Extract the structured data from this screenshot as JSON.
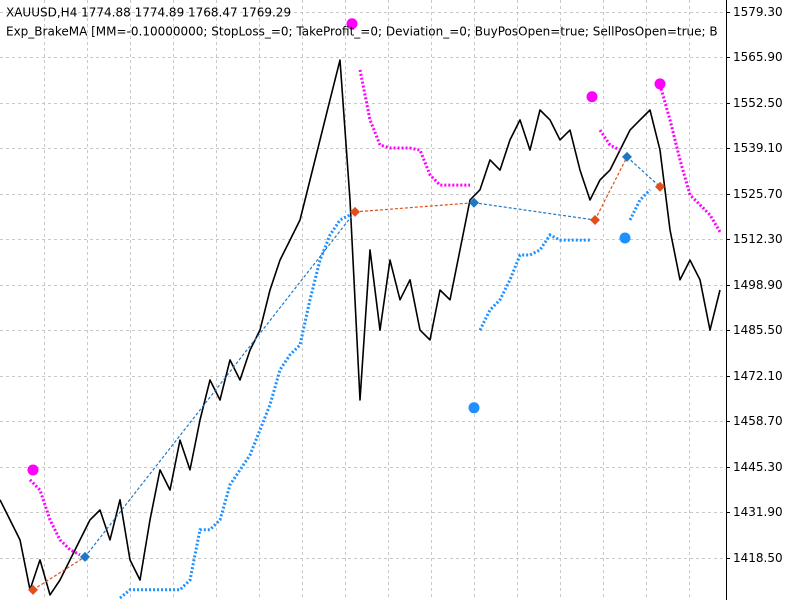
{
  "chart_data": {
    "type": "line",
    "title": "XAUUSD,H4  1774.88 1774.89 1768.47 1769.29",
    "subtitle": "Exp_BrakeMA [MM=-0.10000000; StopLoss_=0; TakeProfit_=0; Deviation_=0; BuyPosOpen=true; SellPosOpen=true; B",
    "x": [
      0,
      1,
      2,
      3,
      4,
      5,
      6,
      7,
      8,
      9,
      10,
      11,
      12,
      13,
      14,
      15,
      16,
      17,
      18,
      19,
      20,
      21,
      22,
      23,
      24,
      25,
      26,
      27,
      28,
      29,
      30,
      31,
      32,
      33,
      34,
      35,
      36,
      37,
      38,
      39,
      40,
      41,
      42,
      43,
      44,
      45,
      46,
      47,
      48,
      49,
      50,
      51,
      52,
      53,
      54,
      55,
      56,
      57,
      58,
      59,
      60,
      61,
      62,
      63,
      64,
      65,
      66,
      67,
      68,
      69,
      70,
      71,
      72
    ],
    "xlim": [
      0,
      72.6
    ],
    "ylim": [
      1406.1,
      1582.8
    ],
    "yticks": [
      {
        "value": 1579.3,
        "label": "1579.30"
      },
      {
        "value": 1565.9,
        "label": "1565.90"
      },
      {
        "value": 1552.5,
        "label": "1552.50"
      },
      {
        "value": 1539.1,
        "label": "1539.10"
      },
      {
        "value": 1525.7,
        "label": "1525.70"
      },
      {
        "value": 1512.3,
        "label": "1512.30"
      },
      {
        "value": 1498.9,
        "label": "1498.90"
      },
      {
        "value": 1485.5,
        "label": "1485.50"
      },
      {
        "value": 1472.1,
        "label": "1472.10"
      },
      {
        "value": 1458.7,
        "label": "1458.70"
      },
      {
        "value": 1445.3,
        "label": "1445.30"
      },
      {
        "value": 1431.9,
        "label": "1431.90"
      },
      {
        "value": 1418.5,
        "label": "1418.50"
      }
    ],
    "grid": true,
    "series": [
      {
        "color": "#000000",
        "style": "solid",
        "values": [
          1435.6,
          1429.7,
          1423.8,
          1409.1,
          1417.9,
          1407.6,
          1412.0,
          1417.9,
          1423.8,
          1429.7,
          1432.6,
          1423.8,
          1435.6,
          1417.9,
          1412.0,
          1429.7,
          1444.4,
          1438.5,
          1453.2,
          1444.4,
          1459.1,
          1470.9,
          1465.0,
          1476.8,
          1470.9,
          1479.7,
          1485.6,
          1497.4,
          1506.2,
          1512.1,
          1518.0,
          1529.8,
          1541.6,
          1553.4,
          1565.1,
          1523.9,
          1465.0,
          1509.2,
          1485.6,
          1506.2,
          1494.5,
          1500.4,
          1485.6,
          1482.7,
          1497.4,
          1494.5,
          1509.2,
          1523.9,
          1526.9,
          1535.7,
          1532.7,
          1541.6,
          1547.5,
          1538.6,
          1550.4,
          1547.5,
          1541.6,
          1544.5,
          1532.7,
          1523.9,
          1529.8,
          1532.7,
          1538.6,
          1544.5,
          1547.5,
          1550.4,
          1538.6,
          1515.1,
          1500.4,
          1506.2,
          1500.4,
          1485.6,
          1497.4
        ]
      },
      {
        "color": "#ff00ff",
        "style": "dotted",
        "values": [
          null,
          null,
          null,
          1441.5,
          1438.5,
          1429.7,
          1423.8,
          1420.9,
          1419.4,
          null,
          null,
          null,
          null,
          null,
          null,
          null,
          null,
          null,
          null,
          null,
          null,
          null,
          null,
          null,
          null,
          null,
          null,
          null,
          null,
          null,
          null,
          null,
          null,
          null,
          null,
          null,
          1562.2,
          1547.5,
          1540.1,
          1539.2,
          1539.2,
          1539.2,
          1538.6,
          1531.3,
          1528.3,
          1528.3,
          1528.3,
          1528.3,
          null,
          null,
          null,
          null,
          null,
          null,
          null,
          null,
          null,
          null,
          null,
          null,
          1544.5,
          1540.1,
          1538.6,
          null,
          null,
          null,
          1557.8,
          1547.5,
          1535.7,
          1525.4,
          1522.5,
          1519.5,
          1514.5
        ]
      },
      {
        "color": "#1e90ff",
        "style": "dotted",
        "values": [
          null,
          null,
          null,
          null,
          null,
          null,
          null,
          null,
          null,
          null,
          null,
          null,
          1406.7,
          1409.1,
          1409.1,
          1409.1,
          1409.1,
          1409.1,
          1409.1,
          1412.0,
          1426.8,
          1426.8,
          1429.7,
          1440.0,
          1444.4,
          1448.8,
          1456.2,
          1463.6,
          1473.9,
          1478.3,
          1481.2,
          1494.5,
          1506.2,
          1513.6,
          1518.0,
          1519.5,
          null,
          null,
          null,
          null,
          null,
          null,
          null,
          null,
          null,
          null,
          null,
          null,
          1485.6,
          1491.5,
          1494.5,
          1500.4,
          1507.7,
          1507.7,
          1509.2,
          1513.6,
          1512.1,
          1512.1,
          1512.1,
          1512.1,
          null,
          null,
          null,
          1518.0,
          1523.9,
          1526.9,
          null,
          null,
          null,
          null,
          null,
          null,
          null
        ]
      }
    ],
    "signals": {
      "x": [
        3.3,
        35.2,
        59.2,
        66.0,
        47.4,
        62.5
      ],
      "values": [
        1444.4,
        1575.8,
        1554.3,
        1558.1,
        1462.7,
        1512.7
      ],
      "colors": [
        "#ff00ff",
        "#ff00ff",
        "#ff00ff",
        "#ff00ff",
        "#1e90ff",
        "#1e90ff"
      ]
    },
    "trades": {
      "x": [
        3.3,
        8.5,
        35.5,
        47.4,
        59.5,
        62.7,
        66.0
      ],
      "values": [
        1409.1,
        1418.8,
        1520.4,
        1523.1,
        1518.0,
        1536.6,
        1527.8
      ],
      "colors": [
        "#e0501c",
        "#1e78c8",
        "#e0501c",
        "#1e78c8",
        "#e0501c",
        "#1e78c8",
        "#e0501c"
      ]
    }
  }
}
